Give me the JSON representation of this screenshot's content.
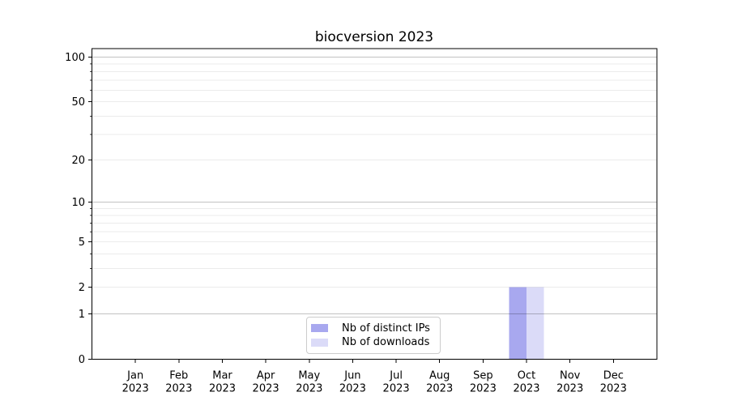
{
  "chart_data": {
    "type": "bar",
    "title": "biocversion 2023",
    "categories": [
      "Jan",
      "Feb",
      "Mar",
      "Apr",
      "May",
      "Jun",
      "Jul",
      "Aug",
      "Sep",
      "Oct",
      "Nov",
      "Dec"
    ],
    "x_year": "2023",
    "series": [
      {
        "name": "Nb of distinct IPs",
        "slug": "distinct-ips",
        "color": "#a8a8ef",
        "values": [
          0,
          0,
          0,
          0,
          0,
          0,
          0,
          0,
          0,
          2,
          0,
          0
        ]
      },
      {
        "name": "Nb of downloads",
        "slug": "downloads",
        "color": "#dbdbf8",
        "values": [
          0,
          0,
          0,
          0,
          0,
          0,
          0,
          0,
          0,
          2,
          0,
          0
        ]
      }
    ],
    "y_scale": "log1p",
    "y_ticks": [
      0,
      1,
      2,
      5,
      10,
      20,
      50,
      100
    ],
    "y_grid_major": [
      1,
      10,
      100
    ],
    "y_grid_minor": [
      2,
      3,
      4,
      5,
      6,
      7,
      8,
      9,
      20,
      30,
      40,
      50,
      60,
      70,
      80,
      90
    ],
    "ylim": [
      0,
      114
    ],
    "grid": true,
    "legend_position": "lower center"
  },
  "colors": {
    "grid_major": "rgba(0,0,0,0.24)",
    "grid_minor": "rgba(0,0,0,0.08)",
    "axis": "#000000",
    "text": "#000000",
    "background": "#ffffff"
  }
}
